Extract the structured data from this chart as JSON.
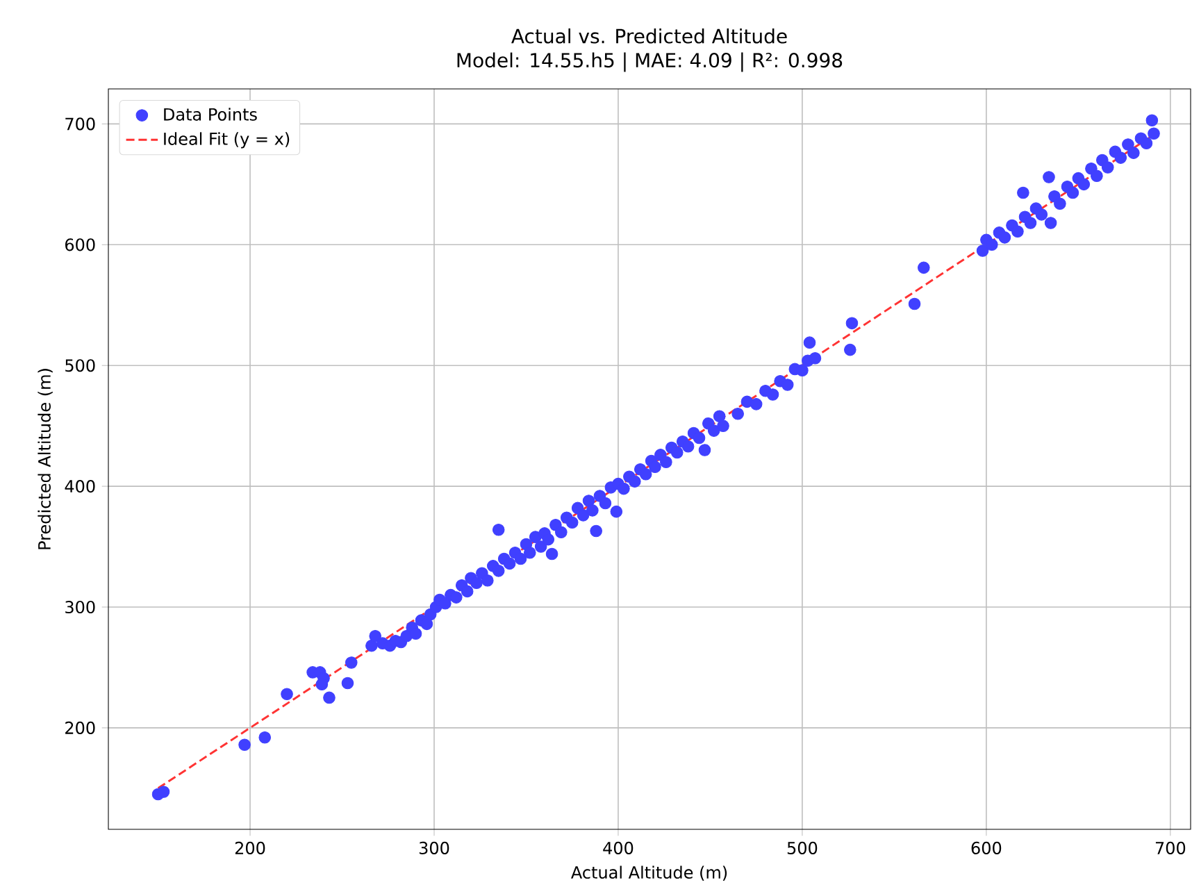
{
  "chart_data": {
    "type": "scatter",
    "title": "Actual vs. Predicted Altitude",
    "subtitle": "Model: 14.55.h5 | MAE: 4.09 | R²: 0.998",
    "xlabel": "Actual Altitude (m)",
    "ylabel": "Predicted Altitude (m)",
    "xlim": [
      123,
      711
    ],
    "ylim": [
      116,
      729
    ],
    "xticks": [
      200,
      300,
      400,
      500,
      600,
      700
    ],
    "yticks": [
      200,
      300,
      400,
      500,
      600,
      700
    ],
    "grid": true,
    "legend": "top left",
    "marker": "circle",
    "series": [
      {
        "name": "Data Points",
        "color": "#4040ff",
        "x": [
          150,
          153,
          197,
          208,
          220,
          234,
          238,
          240,
          239,
          243,
          253,
          255,
          266,
          268,
          272,
          276,
          279,
          282,
          285,
          288,
          290,
          293,
          296,
          298,
          301,
          303,
          306,
          309,
          312,
          315,
          318,
          320,
          323,
          326,
          329,
          332,
          335,
          335,
          338,
          341,
          344,
          347,
          350,
          352,
          355,
          358,
          360,
          362,
          364,
          366,
          369,
          372,
          375,
          378,
          381,
          384,
          386,
          388,
          390,
          393,
          396,
          399,
          400,
          403,
          406,
          409,
          412,
          415,
          418,
          420,
          423,
          426,
          429,
          432,
          435,
          438,
          441,
          444,
          447,
          449,
          452,
          455,
          457,
          465,
          470,
          475,
          480,
          484,
          488,
          492,
          496,
          500,
          503,
          504,
          507,
          526,
          527,
          561,
          566,
          598,
          600,
          603,
          607,
          610,
          614,
          617,
          620,
          621,
          624,
          627,
          630,
          634,
          635,
          637,
          640,
          644,
          647,
          650,
          653,
          657,
          660,
          663,
          666,
          670,
          673,
          677,
          680,
          684,
          687,
          690,
          691
        ],
        "values": [
          145,
          147,
          186,
          192,
          228,
          246,
          246,
          241,
          236,
          225,
          237,
          254,
          268,
          276,
          270,
          268,
          272,
          271,
          276,
          283,
          278,
          289,
          286,
          294,
          300,
          306,
          303,
          310,
          308,
          318,
          313,
          324,
          320,
          328,
          322,
          334,
          330,
          364,
          340,
          336,
          345,
          340,
          352,
          345,
          358,
          350,
          361,
          356,
          344,
          368,
          362,
          374,
          370,
          382,
          376,
          388,
          380,
          363,
          392,
          386,
          399,
          379,
          402,
          398,
          408,
          404,
          414,
          410,
          421,
          416,
          426,
          420,
          432,
          428,
          437,
          433,
          444,
          440,
          430,
          452,
          446,
          458,
          450,
          460,
          470,
          468,
          479,
          476,
          487,
          484,
          497,
          496,
          504,
          519,
          506,
          513,
          535,
          551,
          581,
          595,
          604,
          600,
          610,
          606,
          616,
          611,
          643,
          623,
          618,
          630,
          625,
          656,
          618,
          640,
          634,
          648,
          643,
          655,
          650,
          663,
          657,
          670,
          664,
          677,
          672,
          683,
          676,
          688,
          684,
          703,
          692
        ]
      },
      {
        "type": "line",
        "name": "Ideal Fit (y = x)",
        "color": "#ff3333",
        "line_style": "dashed",
        "marker": "none",
        "x": [
          150,
          692
        ],
        "values": [
          150,
          692
        ]
      }
    ]
  }
}
